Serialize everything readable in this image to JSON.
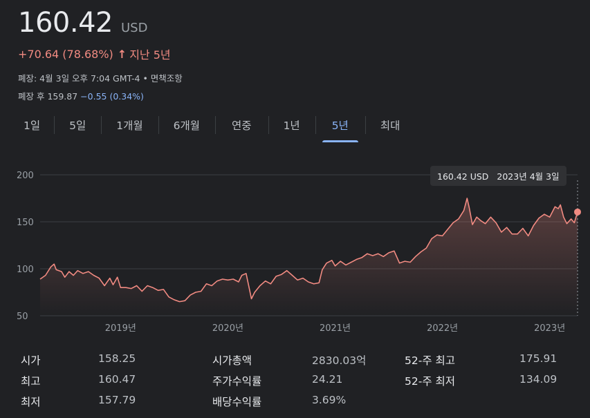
{
  "quote": {
    "price": "160.42",
    "currency": "USD",
    "change": "+70.64 (78.68%)",
    "arrow": "↑",
    "period": "지난 5년",
    "close_info": "폐장: 4월 3일 오후 7:04 GMT-4 • 면책조항",
    "after_hours_label": "폐장 후 159.87",
    "after_hours_change": "−0.55 (0.34%)"
  },
  "tabs": [
    {
      "label": "1일",
      "active": false
    },
    {
      "label": "5일",
      "active": false
    },
    {
      "label": "1개월",
      "active": false
    },
    {
      "label": "6개월",
      "active": false
    },
    {
      "label": "연중",
      "active": false
    },
    {
      "label": "1년",
      "active": false
    },
    {
      "label": "5년",
      "active": true
    },
    {
      "label": "최대",
      "active": false
    }
  ],
  "tooltip": {
    "price": "160.42 USD",
    "date": "2023년 4월 3일"
  },
  "stats": [
    [
      {
        "label": "시가",
        "value": "158.25"
      },
      {
        "label": "시가총액",
        "value": "2830.03억"
      },
      {
        "label": "52-주 최고",
        "value": "175.91"
      }
    ],
    [
      {
        "label": "최고",
        "value": "160.47"
      },
      {
        "label": "주가수익률",
        "value": "24.21"
      },
      {
        "label": "52-주 최저",
        "value": "134.09"
      }
    ],
    [
      {
        "label": "최저",
        "value": "157.79"
      },
      {
        "label": "배당수익률",
        "value": "3.69%"
      },
      {
        "label": "",
        "value": ""
      }
    ]
  ],
  "colors": {
    "line": "#f28b82",
    "accent": "#8ab4f8",
    "grid": "#3c4043",
    "background": "#202124"
  },
  "chart_data": {
    "type": "area",
    "x_unit": "year",
    "xlim": [
      2018.25,
      2023.26
    ],
    "ylim": [
      50,
      200
    ],
    "yticks": [
      200,
      150,
      100,
      50
    ],
    "xticks": [
      {
        "x": 2019,
        "label": "2019년"
      },
      {
        "x": 2020,
        "label": "2020년"
      },
      {
        "x": 2021,
        "label": "2021년"
      },
      {
        "x": 2022,
        "label": "2022년"
      },
      {
        "x": 2023,
        "label": "2023년"
      }
    ],
    "series": [
      {
        "points": [
          [
            2018.25,
            89
          ],
          [
            2018.3,
            93
          ],
          [
            2018.35,
            102
          ],
          [
            2018.38,
            105
          ],
          [
            2018.4,
            99
          ],
          [
            2018.45,
            97
          ],
          [
            2018.48,
            91
          ],
          [
            2018.52,
            97
          ],
          [
            2018.56,
            93
          ],
          [
            2018.6,
            98
          ],
          [
            2018.65,
            95
          ],
          [
            2018.7,
            97
          ],
          [
            2018.75,
            93
          ],
          [
            2018.8,
            90
          ],
          [
            2018.85,
            82
          ],
          [
            2018.9,
            90
          ],
          [
            2018.93,
            83
          ],
          [
            2018.97,
            91
          ],
          [
            2019.0,
            80
          ],
          [
            2019.05,
            80
          ],
          [
            2019.1,
            79
          ],
          [
            2019.15,
            82
          ],
          [
            2019.2,
            76
          ],
          [
            2019.25,
            82
          ],
          [
            2019.3,
            80
          ],
          [
            2019.35,
            77
          ],
          [
            2019.4,
            78
          ],
          [
            2019.45,
            70
          ],
          [
            2019.5,
            67
          ],
          [
            2019.55,
            65
          ],
          [
            2019.6,
            66
          ],
          [
            2019.65,
            72
          ],
          [
            2019.7,
            75
          ],
          [
            2019.75,
            76
          ],
          [
            2019.8,
            84
          ],
          [
            2019.85,
            82
          ],
          [
            2019.9,
            87
          ],
          [
            2019.95,
            89
          ],
          [
            2020.0,
            88
          ],
          [
            2020.05,
            89
          ],
          [
            2020.1,
            86
          ],
          [
            2020.13,
            93
          ],
          [
            2020.17,
            95
          ],
          [
            2020.2,
            79
          ],
          [
            2020.22,
            68
          ],
          [
            2020.25,
            75
          ],
          [
            2020.3,
            82
          ],
          [
            2020.35,
            87
          ],
          [
            2020.4,
            84
          ],
          [
            2020.45,
            92
          ],
          [
            2020.5,
            94
          ],
          [
            2020.55,
            98
          ],
          [
            2020.6,
            93
          ],
          [
            2020.65,
            88
          ],
          [
            2020.7,
            90
          ],
          [
            2020.75,
            86
          ],
          [
            2020.8,
            84
          ],
          [
            2020.85,
            85
          ],
          [
            2020.88,
            99
          ],
          [
            2020.92,
            106
          ],
          [
            2020.97,
            109
          ],
          [
            2021.0,
            103
          ],
          [
            2021.05,
            108
          ],
          [
            2021.1,
            104
          ],
          [
            2021.15,
            107
          ],
          [
            2021.2,
            110
          ],
          [
            2021.25,
            112
          ],
          [
            2021.3,
            116
          ],
          [
            2021.35,
            114
          ],
          [
            2021.4,
            116
          ],
          [
            2021.45,
            113
          ],
          [
            2021.5,
            117
          ],
          [
            2021.55,
            119
          ],
          [
            2021.6,
            106
          ],
          [
            2021.65,
            108
          ],
          [
            2021.7,
            107
          ],
          [
            2021.75,
            113
          ],
          [
            2021.8,
            118
          ],
          [
            2021.85,
            122
          ],
          [
            2021.9,
            132
          ],
          [
            2021.95,
            136
          ],
          [
            2022.0,
            135
          ],
          [
            2022.05,
            142
          ],
          [
            2022.1,
            149
          ],
          [
            2022.15,
            153
          ],
          [
            2022.2,
            162
          ],
          [
            2022.23,
            175
          ],
          [
            2022.25,
            165
          ],
          [
            2022.28,
            147
          ],
          [
            2022.32,
            155
          ],
          [
            2022.36,
            151
          ],
          [
            2022.4,
            148
          ],
          [
            2022.45,
            155
          ],
          [
            2022.5,
            149
          ],
          [
            2022.55,
            139
          ],
          [
            2022.6,
            144
          ],
          [
            2022.65,
            137
          ],
          [
            2022.7,
            137
          ],
          [
            2022.75,
            143
          ],
          [
            2022.8,
            135
          ],
          [
            2022.85,
            146
          ],
          [
            2022.9,
            154
          ],
          [
            2022.95,
            158
          ],
          [
            2023.0,
            155
          ],
          [
            2023.05,
            166
          ],
          [
            2023.08,
            164
          ],
          [
            2023.1,
            168
          ],
          [
            2023.13,
            155
          ],
          [
            2023.16,
            148
          ],
          [
            2023.2,
            153
          ],
          [
            2023.23,
            149
          ],
          [
            2023.26,
            160.42
          ]
        ]
      }
    ],
    "grid": true
  }
}
